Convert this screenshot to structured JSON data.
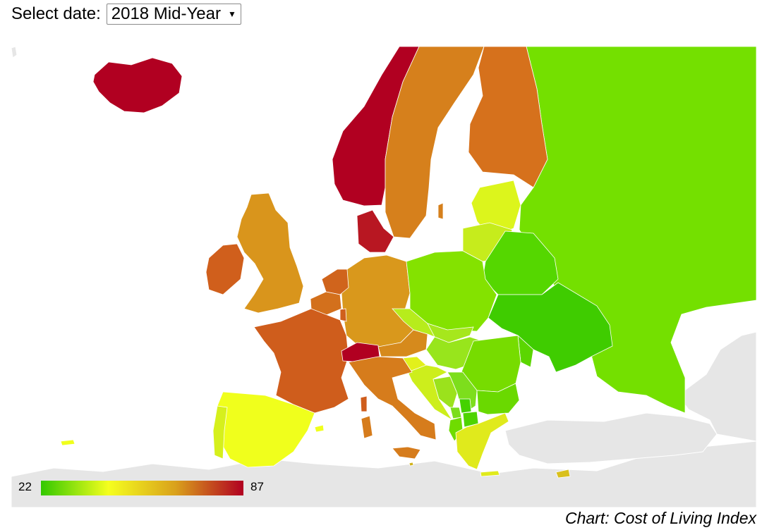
{
  "controls": {
    "date_label": "Select date:",
    "date_selected": "2018 Mid-Year"
  },
  "legend": {
    "min": "22",
    "max": "87",
    "gradient": [
      "#33c800",
      "#f5ff1e",
      "#d9a01c",
      "#b10021"
    ]
  },
  "caption": "Chart: Cost of Living Index",
  "regions": {
    "iceland": "#b10021",
    "norway": "#b10021",
    "sweden": "#d6801c",
    "finland": "#d6711c",
    "russia": "#74e000",
    "estonia_latvia": "#dcf51c",
    "lithuania": "#c6ec1c",
    "belarus": "#55d700",
    "poland": "#84e200",
    "germany": "#d9981c",
    "denmark": "#b81722",
    "uk": "#d9951c",
    "ireland": "#d05f1c",
    "netherlands": "#d0641c",
    "belgium": "#d3701c",
    "luxembourg": "#d0601c",
    "france": "#cf5d1c",
    "switzerland": "#b10021",
    "austria": "#d68a1c",
    "italy": "#d67c1c",
    "spain": "#f0ff1c",
    "portugal": "#d6f01c",
    "czechia": "#b7ec1c",
    "slovakia": "#a6e71c",
    "hungary": "#98e51c",
    "slovenia": "#e2f01c",
    "croatia": "#cdee1c",
    "bosnia": "#9be21c",
    "serbia": "#7dde1c",
    "montenegro": "#7bdd1c",
    "kosovo": "#44d200",
    "albania": "#6fdc00",
    "macedonia": "#4ed400",
    "romania": "#77dc00",
    "moldova": "#5bd600",
    "ukraine": "#3fcc00",
    "bulgaria": "#6ad900",
    "greece": "#e0ea1c",
    "cyprus": "#d9c01c",
    "malta": "#d0b21c"
  }
}
